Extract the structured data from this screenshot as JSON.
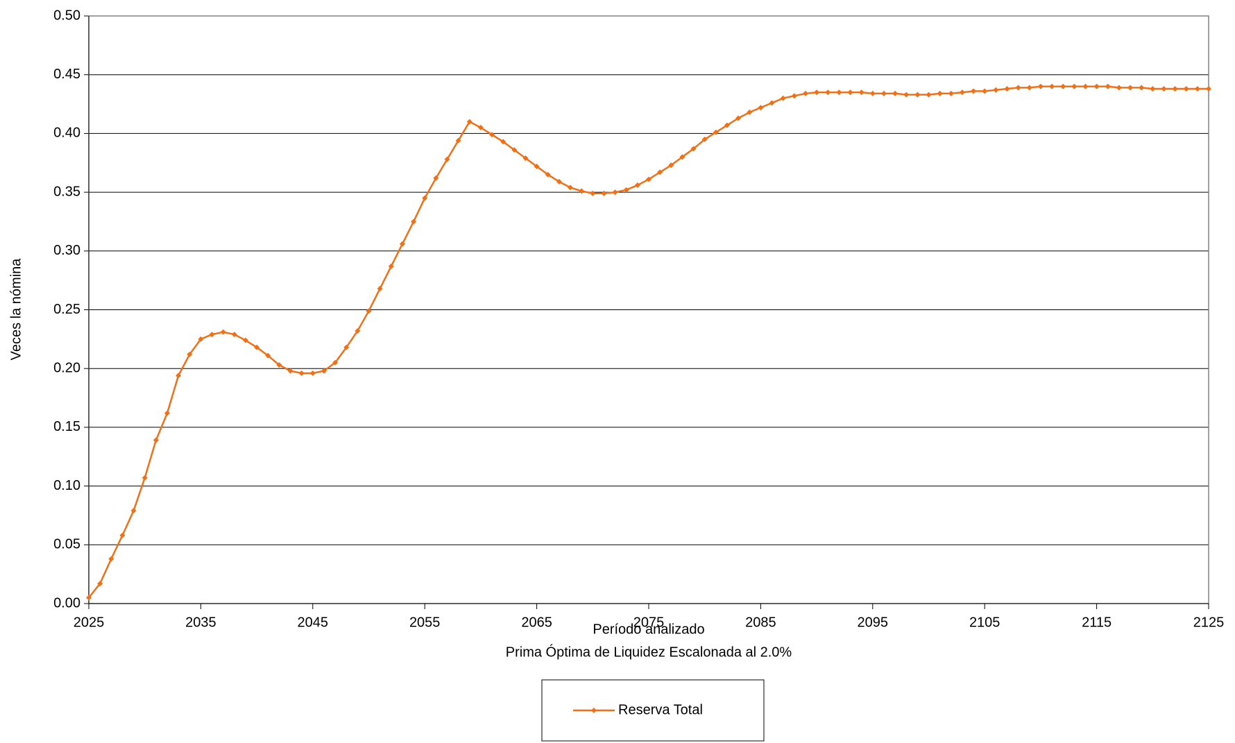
{
  "chart_data": {
    "type": "line",
    "x_label": "Período analizado",
    "subtitle": "Prima Óptima de Liquidez Escalonada al 2.0%",
    "y_label": "Veces la nómina",
    "x": [
      2025,
      2026,
      2027,
      2028,
      2029,
      2030,
      2031,
      2032,
      2033,
      2034,
      2035,
      2036,
      2037,
      2038,
      2039,
      2040,
      2041,
      2042,
      2043,
      2044,
      2045,
      2046,
      2047,
      2048,
      2049,
      2050,
      2051,
      2052,
      2053,
      2054,
      2055,
      2056,
      2057,
      2058,
      2059,
      2060,
      2061,
      2062,
      2063,
      2064,
      2065,
      2066,
      2067,
      2068,
      2069,
      2070,
      2071,
      2072,
      2073,
      2074,
      2075,
      2076,
      2077,
      2078,
      2079,
      2080,
      2081,
      2082,
      2083,
      2084,
      2085,
      2086,
      2087,
      2088,
      2089,
      2090,
      2091,
      2092,
      2093,
      2094,
      2095,
      2096,
      2097,
      2098,
      2099,
      2100,
      2101,
      2102,
      2103,
      2104,
      2105,
      2106,
      2107,
      2108,
      2109,
      2110,
      2111,
      2112,
      2113,
      2114,
      2115,
      2116,
      2117,
      2118,
      2119,
      2120,
      2121,
      2122,
      2123,
      2124,
      2125
    ],
    "series": [
      {
        "name": "Reserva Total",
        "color": "#f07018",
        "values": [
          0.005,
          0.017,
          0.038,
          0.058,
          0.079,
          0.107,
          0.139,
          0.162,
          0.194,
          0.212,
          0.225,
          0.229,
          0.231,
          0.229,
          0.224,
          0.218,
          0.211,
          0.203,
          0.198,
          0.196,
          0.196,
          0.198,
          0.205,
          0.218,
          0.232,
          0.249,
          0.268,
          0.287,
          0.306,
          0.325,
          0.345,
          0.362,
          0.378,
          0.394,
          0.41,
          0.405,
          0.399,
          0.393,
          0.386,
          0.379,
          0.372,
          0.365,
          0.359,
          0.354,
          0.351,
          0.349,
          0.349,
          0.35,
          0.352,
          0.356,
          0.361,
          0.367,
          0.373,
          0.38,
          0.387,
          0.395,
          0.401,
          0.407,
          0.413,
          0.418,
          0.422,
          0.426,
          0.43,
          0.432,
          0.434,
          0.435,
          0.435,
          0.435,
          0.435,
          0.435,
          0.434,
          0.434,
          0.434,
          0.433,
          0.433,
          0.433,
          0.434,
          0.434,
          0.435,
          0.436,
          0.436,
          0.437,
          0.438,
          0.439,
          0.439,
          0.44,
          0.44,
          0.44,
          0.44,
          0.44,
          0.44,
          0.44,
          0.439,
          0.439,
          0.439,
          0.438,
          0.438,
          0.438,
          0.438,
          0.438,
          0.438
        ]
      }
    ],
    "xlim": [
      2025,
      2125
    ],
    "xticks": [
      2025,
      2035,
      2045,
      2055,
      2065,
      2075,
      2085,
      2095,
      2105,
      2115,
      2125
    ],
    "ylim": [
      0,
      0.5
    ],
    "yticks": [
      {
        "value": 0,
        "label": "0.00"
      },
      {
        "value": 0.05,
        "label": "0.05"
      },
      {
        "value": 0.1,
        "label": "0.10"
      },
      {
        "value": 0.15,
        "label": "0.15"
      },
      {
        "value": 0.2,
        "label": "0.20"
      },
      {
        "value": 0.25,
        "label": "0.25"
      },
      {
        "value": 0.3,
        "label": "0.30"
      },
      {
        "value": 0.35,
        "label": "0.35"
      },
      {
        "value": 0.4,
        "label": "0.40"
      },
      {
        "value": 0.45,
        "label": "0.45"
      },
      {
        "value": 0.5,
        "label": "0.50"
      }
    ],
    "grid": true,
    "legend": "bottom"
  }
}
